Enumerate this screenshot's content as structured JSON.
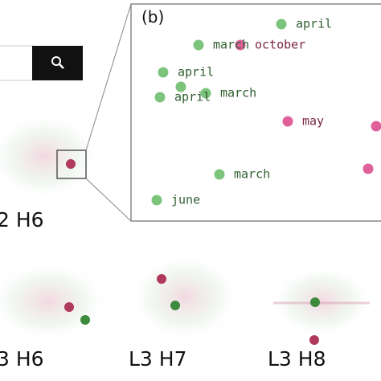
{
  "panel_b": {
    "label": "(b)",
    "points": [
      {
        "label": "april"
      },
      {
        "label": "march"
      },
      {
        "label": "october"
      },
      {
        "label": "april"
      },
      {
        "label": "april"
      },
      {
        "label": "march"
      },
      {
        "label": "may"
      },
      {
        "label": "march"
      },
      {
        "label": "june"
      }
    ]
  },
  "heads": [
    "2 H6",
    "3 H6",
    "L3 H7",
    "L3 H8"
  ]
}
